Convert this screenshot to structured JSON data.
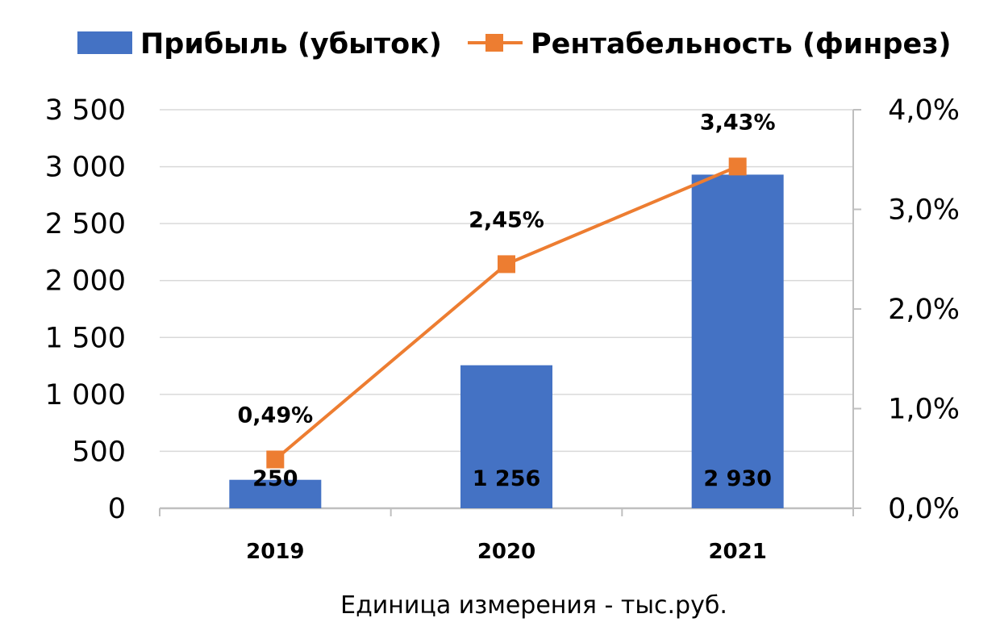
{
  "chart_data": {
    "type": "bar",
    "categories": [
      "2019",
      "2020",
      "2021"
    ],
    "series": [
      {
        "name": "Прибыль (убыток)",
        "kind": "bar",
        "axis": "left",
        "color": "#4472C4",
        "values": [
          250,
          1256,
          2930
        ],
        "labels": [
          "250",
          "1 256",
          "2 930"
        ]
      },
      {
        "name": "Рентабельность (финрез)",
        "kind": "line",
        "axis": "right",
        "color": "#ED7D31",
        "marker": "square",
        "values": [
          0.49,
          2.45,
          3.43
        ],
        "labels": [
          "0,49%",
          "2,45%",
          "3,43%"
        ]
      }
    ],
    "y_left": {
      "range": [
        0,
        3500
      ],
      "ticks": [
        0,
        500,
        1000,
        1500,
        2000,
        2500,
        3000,
        3500
      ],
      "tick_labels": [
        "0",
        "500",
        "1 000",
        "1 500",
        "2 000",
        "2 500",
        "3 000",
        "3 500"
      ]
    },
    "y_right": {
      "range": [
        0,
        4
      ],
      "ticks": [
        0,
        1,
        2,
        3,
        4
      ],
      "tick_labels": [
        "0,0%",
        "1,0%",
        "2,0%",
        "3,0%",
        "4,0%"
      ]
    },
    "grid": true,
    "legend_position": "top"
  },
  "footnote": "Единица измерения - тыс.руб."
}
